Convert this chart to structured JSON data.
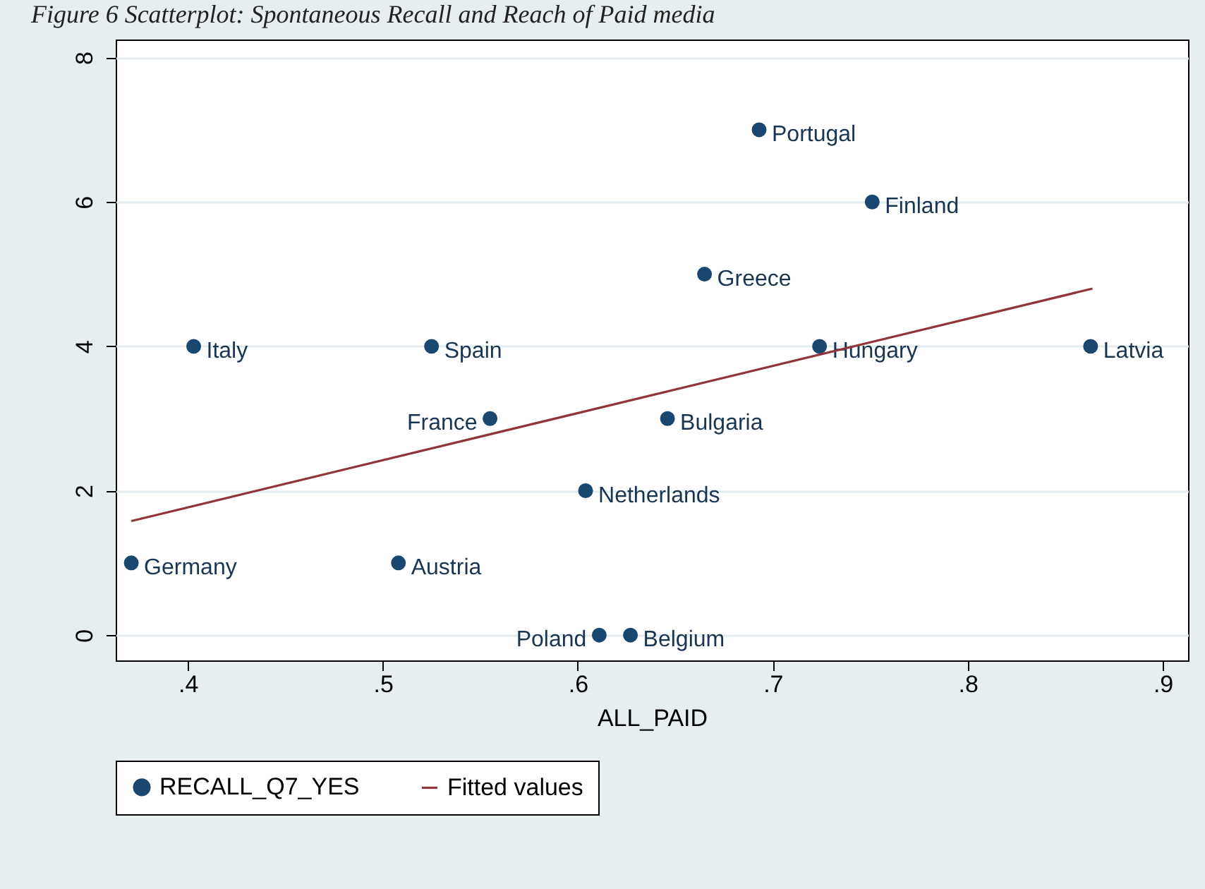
{
  "chart_data": {
    "type": "scatter",
    "title": "Figure 6 Scatterplot: Spontaneous Recall and Reach of Paid media",
    "xlabel": "ALL_PAID",
    "x": [
      0.371,
      0.403,
      0.508,
      0.525,
      0.555,
      0.604,
      0.611,
      0.627,
      0.646,
      0.665,
      0.693,
      0.724,
      0.751,
      0.863
    ],
    "series": [
      {
        "name": "RECALL_Q7_YES",
        "color": "#1a476f",
        "marker": "circle",
        "values": [
          1,
          4,
          1,
          4,
          3,
          2,
          0,
          0,
          3,
          5,
          7,
          4,
          6,
          4
        ]
      },
      {
        "name": "Fitted values",
        "type": "line",
        "color": "#90353b",
        "marker": "none",
        "x": [
          0.371,
          0.864
        ],
        "values": [
          1.58,
          4.8
        ]
      }
    ],
    "annotations": [
      {
        "text": "Germany",
        "x": 0.371,
        "y": 1
      },
      {
        "text": "Italy",
        "x": 0.403,
        "y": 4
      },
      {
        "text": "Austria",
        "x": 0.508,
        "y": 1
      },
      {
        "text": "Spain",
        "x": 0.525,
        "y": 4
      },
      {
        "text": "France",
        "x": 0.555,
        "y": 3
      },
      {
        "text": "Netherlands",
        "x": 0.604,
        "y": 2
      },
      {
        "text": "Poland",
        "x": 0.611,
        "y": 0
      },
      {
        "text": "Belgium",
        "x": 0.627,
        "y": 0
      },
      {
        "text": "Bulgaria",
        "x": 0.646,
        "y": 3
      },
      {
        "text": "Greece",
        "x": 0.665,
        "y": 5
      },
      {
        "text": "Portugal",
        "x": 0.693,
        "y": 7
      },
      {
        "text": "Hungary",
        "x": 0.724,
        "y": 4
      },
      {
        "text": "Finland",
        "x": 0.751,
        "y": 6
      },
      {
        "text": "Latvia",
        "x": 0.863,
        "y": 4
      }
    ],
    "xlim": [
      0.363,
      0.913
    ],
    "ylim": [
      -0.35,
      8.25
    ],
    "xticks": [
      {
        "value": 0.4,
        "label": ".4"
      },
      {
        "value": 0.5,
        "label": ".5"
      },
      {
        "value": 0.6,
        "label": ".6"
      },
      {
        "value": 0.7,
        "label": ".7"
      },
      {
        "value": 0.8,
        "label": ".8"
      },
      {
        "value": 0.9,
        "label": ".9"
      }
    ],
    "yticks": [
      0,
      2,
      4,
      6,
      8
    ],
    "grid": "y",
    "legend": "bottom"
  }
}
